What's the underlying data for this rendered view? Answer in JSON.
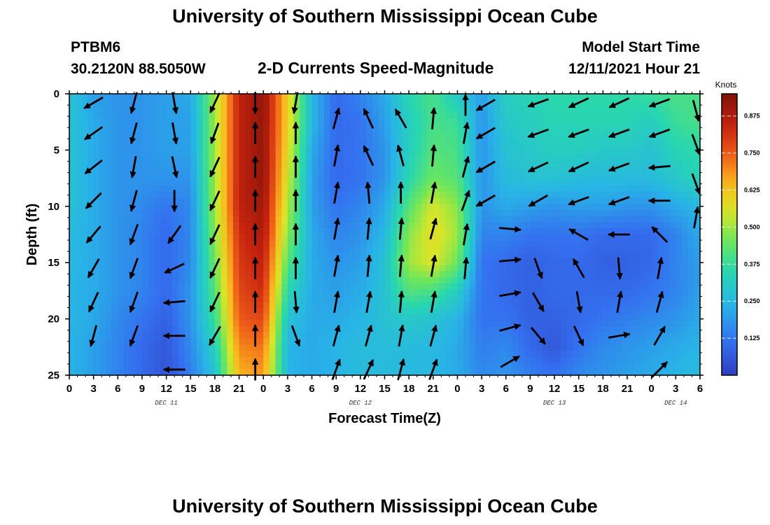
{
  "header": {
    "title": "University of Southern Mississippi Ocean Cube",
    "station": "PTBM6",
    "coords": "30.2120N  88.5050W",
    "subtitle": "2-D Currents Speed-Magnitude",
    "model_start_label": "Model Start Time",
    "model_start_value": "12/11/2021 Hour 21"
  },
  "footer": {
    "title": "University of Southern Mississippi Ocean Cube"
  },
  "chart_data": {
    "type": "heatmap",
    "title": "2-D Currents Speed-Magnitude",
    "xlabel": "Forecast Time(Z)",
    "ylabel": "Depth (ft)",
    "x_tick_labels": [
      "0",
      "3",
      "6",
      "9",
      "12",
      "15",
      "18",
      "21",
      "0",
      "3",
      "6",
      "9",
      "12",
      "15",
      "18",
      "21",
      "0",
      "3",
      "6",
      "9",
      "12",
      "15",
      "18",
      "21",
      "0",
      "3",
      "6"
    ],
    "x_range_hours": [
      0,
      78
    ],
    "y_ticks": [
      0,
      5,
      10,
      15,
      20,
      25
    ],
    "y_range_ft": [
      0,
      25
    ],
    "y_inverted": true,
    "date_labels": [
      {
        "label": "DEC 11",
        "hour": 12
      },
      {
        "label": "DEC 12",
        "hour": 36
      },
      {
        "label": "DEC 13",
        "hour": 60
      },
      {
        "label": "DEC 14",
        "hour": 75
      }
    ],
    "colorbar": {
      "unit": "Knots",
      "range": [
        0,
        0.95
      ],
      "ticks": [
        "0.875",
        "0.750",
        "0.625",
        "0.500",
        "0.375",
        "0.250",
        "0.125"
      ],
      "tick_values": [
        0.875,
        0.75,
        0.625,
        0.5,
        0.375,
        0.25,
        0.125
      ],
      "colormap": "jet"
    },
    "grid_hours": [
      0,
      3,
      6,
      9,
      12,
      15,
      18,
      21,
      24,
      27,
      30,
      33,
      36,
      39,
      42,
      45,
      48,
      51,
      54,
      57,
      60,
      63,
      66,
      69,
      72,
      75,
      78
    ],
    "grid_depths_ft": [
      0,
      2.5,
      5,
      7.5,
      10,
      12.5,
      15,
      17.5,
      20,
      22.5,
      25
    ],
    "speed_knots": [
      [
        0.28,
        0.2,
        0.18,
        0.18,
        0.2,
        0.22,
        0.5,
        0.85,
        0.92,
        0.6,
        0.25,
        0.1,
        0.15,
        0.22,
        0.35,
        0.4,
        0.3,
        0.2,
        0.32,
        0.34,
        0.36,
        0.36,
        0.36,
        0.36,
        0.38,
        0.4,
        0.4
      ],
      [
        0.28,
        0.22,
        0.18,
        0.18,
        0.2,
        0.2,
        0.5,
        0.85,
        0.92,
        0.6,
        0.25,
        0.1,
        0.12,
        0.2,
        0.32,
        0.4,
        0.38,
        0.18,
        0.3,
        0.32,
        0.34,
        0.34,
        0.34,
        0.34,
        0.32,
        0.38,
        0.4
      ],
      [
        0.28,
        0.22,
        0.18,
        0.18,
        0.2,
        0.2,
        0.5,
        0.85,
        0.92,
        0.58,
        0.22,
        0.1,
        0.12,
        0.18,
        0.32,
        0.42,
        0.4,
        0.18,
        0.28,
        0.3,
        0.32,
        0.32,
        0.3,
        0.3,
        0.28,
        0.34,
        0.36
      ],
      [
        0.28,
        0.22,
        0.18,
        0.18,
        0.18,
        0.18,
        0.5,
        0.85,
        0.92,
        0.55,
        0.2,
        0.1,
        0.12,
        0.18,
        0.35,
        0.45,
        0.42,
        0.18,
        0.26,
        0.28,
        0.28,
        0.26,
        0.26,
        0.26,
        0.26,
        0.3,
        0.34
      ],
      [
        0.28,
        0.22,
        0.18,
        0.16,
        0.12,
        0.16,
        0.5,
        0.85,
        0.9,
        0.52,
        0.2,
        0.12,
        0.15,
        0.22,
        0.42,
        0.55,
        0.48,
        0.18,
        0.22,
        0.2,
        0.18,
        0.2,
        0.2,
        0.18,
        0.18,
        0.22,
        0.25
      ],
      [
        0.26,
        0.22,
        0.18,
        0.15,
        0.1,
        0.16,
        0.48,
        0.82,
        0.88,
        0.48,
        0.22,
        0.15,
        0.18,
        0.25,
        0.48,
        0.58,
        0.5,
        0.15,
        0.15,
        0.12,
        0.12,
        0.12,
        0.1,
        0.1,
        0.1,
        0.15,
        0.22
      ],
      [
        0.25,
        0.22,
        0.18,
        0.15,
        0.1,
        0.16,
        0.45,
        0.8,
        0.85,
        0.42,
        0.22,
        0.18,
        0.2,
        0.28,
        0.5,
        0.56,
        0.45,
        0.12,
        0.1,
        0.08,
        0.1,
        0.1,
        0.08,
        0.08,
        0.1,
        0.15,
        0.2
      ],
      [
        0.24,
        0.22,
        0.18,
        0.15,
        0.1,
        0.18,
        0.42,
        0.78,
        0.82,
        0.35,
        0.22,
        0.2,
        0.22,
        0.28,
        0.42,
        0.4,
        0.32,
        0.12,
        0.1,
        0.08,
        0.1,
        0.1,
        0.1,
        0.1,
        0.12,
        0.15,
        0.2
      ],
      [
        0.24,
        0.22,
        0.16,
        0.12,
        0.08,
        0.18,
        0.38,
        0.75,
        0.78,
        0.28,
        0.22,
        0.22,
        0.24,
        0.28,
        0.3,
        0.28,
        0.24,
        0.12,
        0.12,
        0.08,
        0.08,
        0.1,
        0.12,
        0.14,
        0.16,
        0.18,
        0.22
      ],
      [
        0.24,
        0.2,
        0.15,
        0.1,
        0.06,
        0.16,
        0.32,
        0.7,
        0.72,
        0.24,
        0.22,
        0.24,
        0.26,
        0.26,
        0.26,
        0.25,
        0.22,
        0.14,
        0.16,
        0.1,
        0.06,
        0.12,
        0.16,
        0.18,
        0.2,
        0.22,
        0.24
      ],
      [
        0.24,
        0.2,
        0.15,
        0.1,
        0.05,
        0.14,
        0.28,
        0.65,
        0.68,
        0.24,
        0.22,
        0.24,
        0.26,
        0.26,
        0.25,
        0.25,
        0.22,
        0.16,
        0.18,
        0.14,
        0.12,
        0.16,
        0.18,
        0.2,
        0.22,
        0.24,
        0.26
      ]
    ],
    "current_vectors": [
      {
        "hour": 3,
        "depth": 0.8,
        "dir": 240
      },
      {
        "hour": 3,
        "depth": 3.5,
        "dir": 235
      },
      {
        "hour": 3,
        "depth": 6.5,
        "dir": 232
      },
      {
        "hour": 3,
        "depth": 9.5,
        "dir": 225
      },
      {
        "hour": 3,
        "depth": 12.5,
        "dir": 220
      },
      {
        "hour": 3,
        "depth": 15.5,
        "dir": 210
      },
      {
        "hour": 3,
        "depth": 18.5,
        "dir": 205
      },
      {
        "hour": 3,
        "depth": 21.5,
        "dir": 195
      },
      {
        "hour": 8,
        "depth": 0.8,
        "dir": 195
      },
      {
        "hour": 8,
        "depth": 3.5,
        "dir": 195
      },
      {
        "hour": 8,
        "depth": 6.5,
        "dir": 190
      },
      {
        "hour": 8,
        "depth": 9.5,
        "dir": 195
      },
      {
        "hour": 8,
        "depth": 12.5,
        "dir": 200
      },
      {
        "hour": 8,
        "depth": 15.5,
        "dir": 200
      },
      {
        "hour": 8,
        "depth": 18.5,
        "dir": 200
      },
      {
        "hour": 8,
        "depth": 21.5,
        "dir": 200
      },
      {
        "hour": 13,
        "depth": 0.8,
        "dir": 170
      },
      {
        "hour": 13,
        "depth": 3.5,
        "dir": 170
      },
      {
        "hour": 13,
        "depth": 6.5,
        "dir": 168
      },
      {
        "hour": 13,
        "depth": 9.5,
        "dir": 180
      },
      {
        "hour": 13,
        "depth": 12.5,
        "dir": 215
      },
      {
        "hour": 13,
        "depth": 15.5,
        "dir": 245
      },
      {
        "hour": 13,
        "depth": 18.5,
        "dir": 265
      },
      {
        "hour": 13,
        "depth": 21.5,
        "dir": 270
      },
      {
        "hour": 13,
        "depth": 24.5,
        "dir": 270
      },
      {
        "hour": 18,
        "depth": 0.8,
        "dir": 205
      },
      {
        "hour": 18,
        "depth": 3.5,
        "dir": 200
      },
      {
        "hour": 18,
        "depth": 6.5,
        "dir": 205
      },
      {
        "hour": 18,
        "depth": 9.5,
        "dir": 205
      },
      {
        "hour": 18,
        "depth": 12.5,
        "dir": 205
      },
      {
        "hour": 18,
        "depth": 15.5,
        "dir": 205
      },
      {
        "hour": 18,
        "depth": 18.5,
        "dir": 205
      },
      {
        "hour": 18,
        "depth": 21.5,
        "dir": 210
      },
      {
        "hour": 23,
        "depth": 0.8,
        "dir": 180
      },
      {
        "hour": 23,
        "depth": 3.5,
        "dir": 0
      },
      {
        "hour": 23,
        "depth": 6.5,
        "dir": 0
      },
      {
        "hour": 23,
        "depth": 9.5,
        "dir": 0
      },
      {
        "hour": 23,
        "depth": 12.5,
        "dir": 0
      },
      {
        "hour": 23,
        "depth": 15.5,
        "dir": 0
      },
      {
        "hour": 23,
        "depth": 18.5,
        "dir": 0
      },
      {
        "hour": 23,
        "depth": 21.5,
        "dir": 0
      },
      {
        "hour": 23,
        "depth": 24.5,
        "dir": 0
      },
      {
        "hour": 28,
        "depth": 0.8,
        "dir": 190
      },
      {
        "hour": 28,
        "depth": 3.5,
        "dir": 0
      },
      {
        "hour": 28,
        "depth": 6.5,
        "dir": 0
      },
      {
        "hour": 28,
        "depth": 9.5,
        "dir": 0
      },
      {
        "hour": 28,
        "depth": 12.5,
        "dir": 0
      },
      {
        "hour": 28,
        "depth": 15.5,
        "dir": 0
      },
      {
        "hour": 28,
        "depth": 18.5,
        "dir": 175
      },
      {
        "hour": 28,
        "depth": 21.5,
        "dir": 160
      },
      {
        "hour": 33,
        "depth": 2.2,
        "dir": 15
      },
      {
        "hour": 33,
        "depth": 5.5,
        "dir": 10
      },
      {
        "hour": 33,
        "depth": 8.8,
        "dir": 10
      },
      {
        "hour": 33,
        "depth": 12.0,
        "dir": 10
      },
      {
        "hour": 33,
        "depth": 15.3,
        "dir": 10
      },
      {
        "hour": 33,
        "depth": 18.5,
        "dir": 10
      },
      {
        "hour": 33,
        "depth": 21.5,
        "dir": 15
      },
      {
        "hour": 33,
        "depth": 24.5,
        "dir": 20
      },
      {
        "hour": 37,
        "depth": 2.2,
        "dir": 335
      },
      {
        "hour": 37,
        "depth": 5.5,
        "dir": 335
      },
      {
        "hour": 37,
        "depth": 8.8,
        "dir": 355
      },
      {
        "hour": 37,
        "depth": 12.0,
        "dir": 5
      },
      {
        "hour": 37,
        "depth": 15.3,
        "dir": 5
      },
      {
        "hour": 37,
        "depth": 18.5,
        "dir": 10
      },
      {
        "hour": 37,
        "depth": 21.5,
        "dir": 15
      },
      {
        "hour": 37,
        "depth": 24.5,
        "dir": 25
      },
      {
        "hour": 41,
        "depth": 2.2,
        "dir": 330
      },
      {
        "hour": 41,
        "depth": 5.5,
        "dir": 345
      },
      {
        "hour": 41,
        "depth": 8.8,
        "dir": 0
      },
      {
        "hour": 41,
        "depth": 12.0,
        "dir": 5
      },
      {
        "hour": 41,
        "depth": 15.3,
        "dir": 5
      },
      {
        "hour": 41,
        "depth": 18.5,
        "dir": 5
      },
      {
        "hour": 41,
        "depth": 21.5,
        "dir": 10
      },
      {
        "hour": 41,
        "depth": 24.5,
        "dir": 15
      },
      {
        "hour": 45,
        "depth": 2.2,
        "dir": 5
      },
      {
        "hour": 45,
        "depth": 5.5,
        "dir": 5
      },
      {
        "hour": 45,
        "depth": 8.8,
        "dir": 10
      },
      {
        "hour": 45,
        "depth": 12.0,
        "dir": 15
      },
      {
        "hour": 45,
        "depth": 15.3,
        "dir": 10
      },
      {
        "hour": 45,
        "depth": 18.5,
        "dir": 10
      },
      {
        "hour": 45,
        "depth": 21.5,
        "dir": 15
      },
      {
        "hour": 45,
        "depth": 24.5,
        "dir": 20
      },
      {
        "hour": 49,
        "depth": 1.0,
        "dir": 0
      },
      {
        "hour": 49,
        "depth": 3.5,
        "dir": 10
      },
      {
        "hour": 49,
        "depth": 6.5,
        "dir": 15
      },
      {
        "hour": 49,
        "depth": 9.5,
        "dir": 20
      },
      {
        "hour": 49,
        "depth": 12.5,
        "dir": 10
      },
      {
        "hour": 49,
        "depth": 15.5,
        "dir": 5
      },
      {
        "hour": 51.5,
        "depth": 1.0,
        "dir": 240
      },
      {
        "hour": 51.5,
        "depth": 3.5,
        "dir": 240
      },
      {
        "hour": 51.5,
        "depth": 6.5,
        "dir": 240
      },
      {
        "hour": 51.5,
        "depth": 9.5,
        "dir": 240
      },
      {
        "hour": 54.5,
        "depth": 12.0,
        "dir": 95
      },
      {
        "hour": 54.5,
        "depth": 14.8,
        "dir": 85
      },
      {
        "hour": 54.5,
        "depth": 17.8,
        "dir": 80
      },
      {
        "hour": 54.5,
        "depth": 20.8,
        "dir": 75
      },
      {
        "hour": 54.5,
        "depth": 23.8,
        "dir": 60
      },
      {
        "hour": 58,
        "depth": 0.8,
        "dir": 250
      },
      {
        "hour": 58,
        "depth": 3.5,
        "dir": 250
      },
      {
        "hour": 58,
        "depth": 6.5,
        "dir": 245
      },
      {
        "hour": 58,
        "depth": 9.5,
        "dir": 240
      },
      {
        "hour": 58,
        "depth": 15.5,
        "dir": 160
      },
      {
        "hour": 58,
        "depth": 18.5,
        "dir": 150
      },
      {
        "hour": 58,
        "depth": 21.5,
        "dir": 140
      },
      {
        "hour": 63,
        "depth": 0.8,
        "dir": 245
      },
      {
        "hour": 63,
        "depth": 3.5,
        "dir": 250
      },
      {
        "hour": 63,
        "depth": 6.5,
        "dir": 245
      },
      {
        "hour": 63,
        "depth": 9.5,
        "dir": 250
      },
      {
        "hour": 63,
        "depth": 12.5,
        "dir": 300
      },
      {
        "hour": 63,
        "depth": 15.5,
        "dir": 330
      },
      {
        "hour": 63,
        "depth": 18.5,
        "dir": 170
      },
      {
        "hour": 63,
        "depth": 21.5,
        "dir": 155
      },
      {
        "hour": 68,
        "depth": 0.8,
        "dir": 245
      },
      {
        "hour": 68,
        "depth": 3.5,
        "dir": 250
      },
      {
        "hour": 68,
        "depth": 6.5,
        "dir": 250
      },
      {
        "hour": 68,
        "depth": 9.5,
        "dir": 250
      },
      {
        "hour": 68,
        "depth": 12.5,
        "dir": 270
      },
      {
        "hour": 68,
        "depth": 15.5,
        "dir": 175
      },
      {
        "hour": 68,
        "depth": 18.5,
        "dir": 10
      },
      {
        "hour": 68,
        "depth": 21.5,
        "dir": 80
      },
      {
        "hour": 73,
        "depth": 0.8,
        "dir": 250
      },
      {
        "hour": 73,
        "depth": 3.5,
        "dir": 250
      },
      {
        "hour": 73,
        "depth": 6.5,
        "dir": 265
      },
      {
        "hour": 73,
        "depth": 9.5,
        "dir": 270
      },
      {
        "hour": 73,
        "depth": 12.5,
        "dir": 315
      },
      {
        "hour": 73,
        "depth": 15.5,
        "dir": 10
      },
      {
        "hour": 73,
        "depth": 18.5,
        "dir": 15
      },
      {
        "hour": 73,
        "depth": 21.5,
        "dir": 30
      },
      {
        "hour": 73,
        "depth": 24.5,
        "dir": 45
      },
      {
        "hour": 77.5,
        "depth": 1.5,
        "dir": 165
      },
      {
        "hour": 77.5,
        "depth": 4.5,
        "dir": 160
      },
      {
        "hour": 77.5,
        "depth": 8.0,
        "dir": 160
      },
      {
        "hour": 77.5,
        "depth": 11.0,
        "dir": 10
      }
    ]
  }
}
